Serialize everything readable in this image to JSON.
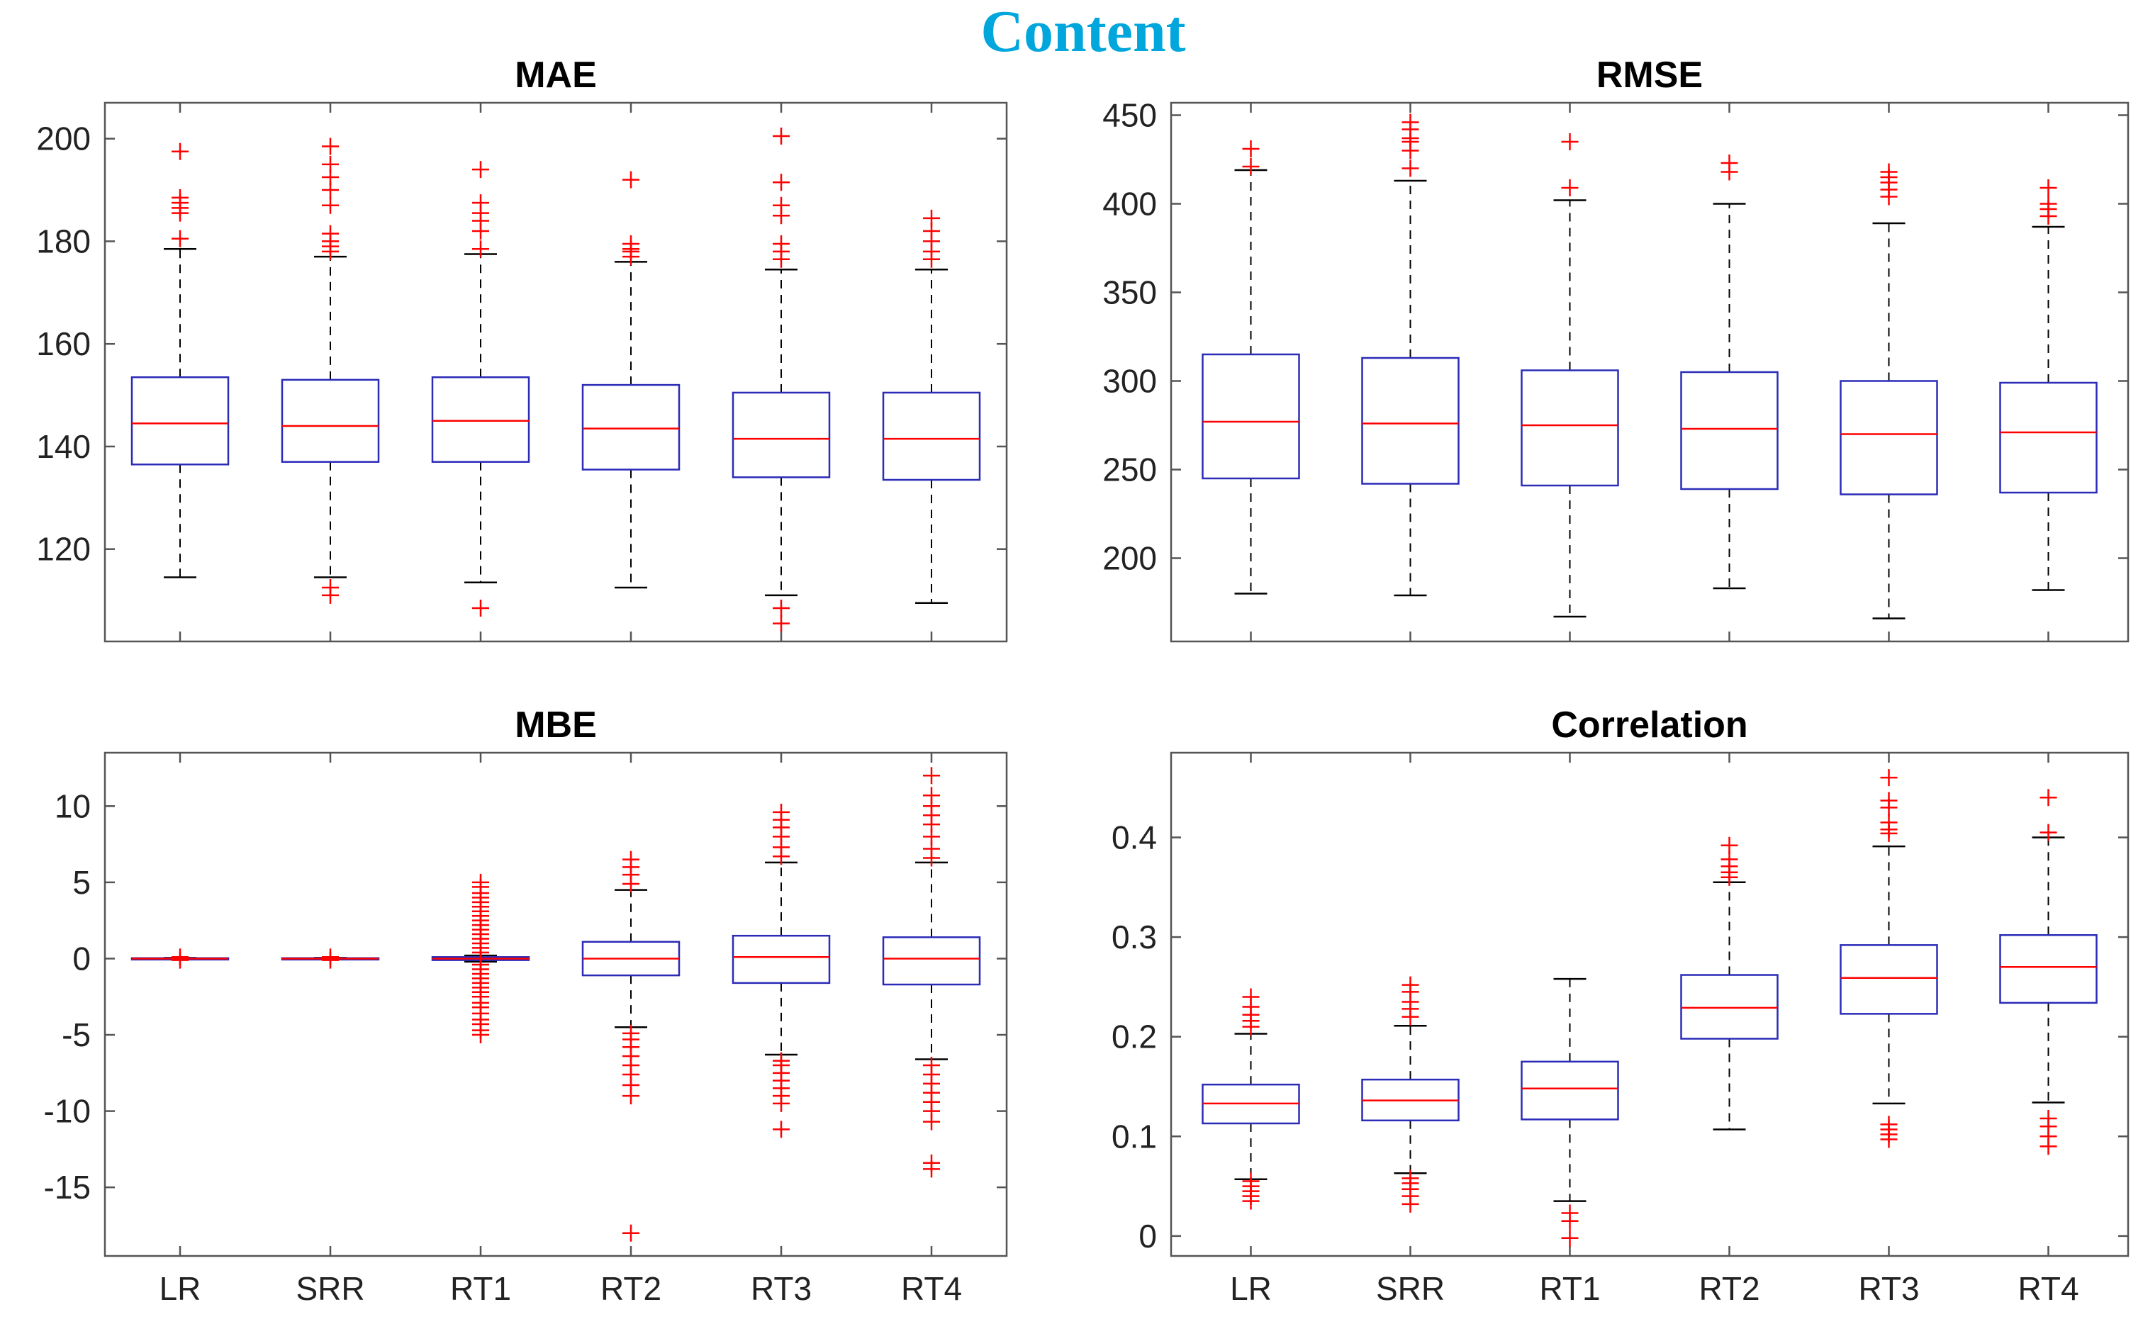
{
  "figure_title": "Content",
  "colors": {
    "title": "#00a6dc",
    "box": "#2b2bb8",
    "median": "#ff0000",
    "whisker": "#000000",
    "outlier": "#ff0000",
    "axes": "#555555"
  },
  "chart_data": [
    {
      "type": "box",
      "title": "MAE",
      "categories": [
        "LR",
        "SRR",
        "RT1",
        "RT2",
        "RT3",
        "RT4"
      ],
      "ylim": [
        102,
        207
      ],
      "yticks": [
        120,
        140,
        160,
        180,
        200
      ],
      "ytick_labels": [
        "120",
        "140",
        "160",
        "180",
        "200"
      ],
      "show_xtick_labels": false,
      "boxes": [
        {
          "category": "LR",
          "whisker_low": 114.5,
          "q1": 136.5,
          "median": 144.5,
          "q3": 153.5,
          "whisker_high": 178.5,
          "outliers": [
            180.5,
            185.5,
            186.5,
            187.5,
            188.5,
            197.5
          ]
        },
        {
          "category": "SRR",
          "whisker_low": 114.5,
          "q1": 137,
          "median": 144,
          "q3": 153,
          "whisker_high": 177,
          "outliers": [
            111,
            112.5,
            178,
            179,
            180,
            181.5,
            187,
            190,
            192.5,
            195,
            198.5
          ]
        },
        {
          "category": "RT1",
          "whisker_low": 113.5,
          "q1": 137,
          "median": 145,
          "q3": 153.5,
          "whisker_high": 177.5,
          "outliers": [
            108.5,
            178.5,
            182,
            184,
            185.5,
            187.5,
            194
          ]
        },
        {
          "category": "RT2",
          "whisker_low": 112.5,
          "q1": 135.5,
          "median": 143.5,
          "q3": 152,
          "whisker_high": 176,
          "outliers": [
            177,
            178,
            178.5,
            179.5,
            192
          ]
        },
        {
          "category": "RT3",
          "whisker_low": 111,
          "q1": 134,
          "median": 141.5,
          "q3": 150.5,
          "whisker_high": 174.5,
          "outliers": [
            105.5,
            108.5,
            176.5,
            178,
            179.5,
            185,
            187,
            191.5,
            200.5
          ]
        },
        {
          "category": "RT4",
          "whisker_low": 109.5,
          "q1": 133.5,
          "median": 141.5,
          "q3": 150.5,
          "whisker_high": 174.5,
          "outliers": [
            176.5,
            178,
            180,
            182,
            184.5
          ]
        }
      ]
    },
    {
      "type": "box",
      "title": "RMSE",
      "categories": [
        "LR",
        "SRR",
        "RT1",
        "RT2",
        "RT3",
        "RT4"
      ],
      "ylim": [
        153,
        457
      ],
      "yticks": [
        200,
        250,
        300,
        350,
        400,
        450
      ],
      "ytick_labels": [
        "200",
        "250",
        "300",
        "350",
        "400",
        "450"
      ],
      "show_xtick_labels": false,
      "boxes": [
        {
          "category": "LR",
          "whisker_low": 180,
          "q1": 245,
          "median": 277,
          "q3": 315,
          "whisker_high": 419,
          "outliers": [
            421,
            431
          ]
        },
        {
          "category": "SRR",
          "whisker_low": 179,
          "q1": 242,
          "median": 276,
          "q3": 313,
          "whisker_high": 413,
          "outliers": [
            420,
            430,
            435,
            437,
            442,
            446
          ]
        },
        {
          "category": "RT1",
          "whisker_low": 167,
          "q1": 241,
          "median": 275,
          "q3": 306,
          "whisker_high": 402,
          "outliers": [
            409,
            435
          ]
        },
        {
          "category": "RT2",
          "whisker_low": 183,
          "q1": 239,
          "median": 273,
          "q3": 305,
          "whisker_high": 400,
          "outliers": [
            418,
            423
          ]
        },
        {
          "category": "RT3",
          "whisker_low": 166,
          "q1": 236,
          "median": 270,
          "q3": 300,
          "whisker_high": 389,
          "outliers": [
            404,
            408,
            412,
            415,
            418
          ]
        },
        {
          "category": "RT4",
          "whisker_low": 182,
          "q1": 237,
          "median": 271,
          "q3": 299,
          "whisker_high": 387,
          "outliers": [
            393,
            397,
            400,
            409
          ]
        }
      ]
    },
    {
      "type": "box",
      "title": "MBE",
      "categories": [
        "LR",
        "SRR",
        "RT1",
        "RT2",
        "RT3",
        "RT4"
      ],
      "ylim": [
        -19.5,
        13.5
      ],
      "yticks": [
        -15,
        -10,
        -5,
        0,
        5,
        10
      ],
      "ytick_labels": [
        "-15",
        "-10",
        "-5",
        "0",
        "5",
        "10"
      ],
      "show_xtick_labels": true,
      "boxes": [
        {
          "category": "LR",
          "whisker_low": -0.05,
          "q1": -0.03,
          "median": 0,
          "q3": 0.03,
          "whisker_high": 0.05,
          "outliers": [
            -0.1,
            0.1
          ]
        },
        {
          "category": "SRR",
          "whisker_low": -0.05,
          "q1": -0.03,
          "median": 0,
          "q3": 0.03,
          "whisker_high": 0.05,
          "outliers": [
            -0.1,
            0.1
          ]
        },
        {
          "category": "RT1",
          "whisker_low": -0.2,
          "q1": -0.1,
          "median": 0,
          "q3": 0.1,
          "whisker_high": 0.2,
          "outliers": [
            -5,
            -4.7,
            -4.3,
            -4,
            -3.6,
            -3.2,
            -2.9,
            -2.5,
            -2.2,
            -1.9,
            -1.6,
            -1.3,
            -1,
            -0.7,
            -0.4,
            0.4,
            0.7,
            1,
            1.3,
            1.6,
            1.9,
            2.2,
            2.5,
            2.8,
            3.1,
            3.4,
            3.7,
            4,
            4.3,
            4.7,
            5
          ]
        },
        {
          "category": "RT2",
          "whisker_low": -4.5,
          "q1": -1.1,
          "median": 0,
          "q3": 1.1,
          "whisker_high": 4.5,
          "outliers": [
            -18,
            -9,
            -8.3,
            -7.6,
            -7,
            -6.4,
            -5.8,
            -5.3,
            -4.9,
            4.9,
            5.5,
            6,
            6.5
          ]
        },
        {
          "category": "RT3",
          "whisker_low": -6.3,
          "q1": -1.6,
          "median": 0.1,
          "q3": 1.5,
          "whisker_high": 6.3,
          "outliers": [
            -11.2,
            -9.5,
            -9,
            -8.5,
            -8,
            -7.5,
            -7,
            -6.7,
            6.7,
            7.3,
            8,
            8.6,
            9.1,
            9.6
          ]
        },
        {
          "category": "RT4",
          "whisker_low": -6.6,
          "q1": -1.7,
          "median": 0,
          "q3": 1.4,
          "whisker_high": 6.3,
          "outliers": [
            -13.8,
            -13.4,
            -10.7,
            -10,
            -9.4,
            -8.8,
            -8.2,
            -7.6,
            -7,
            6.6,
            7.2,
            8,
            8.8,
            9.4,
            10,
            10.7,
            12
          ]
        }
      ]
    },
    {
      "type": "box",
      "title": "Correlation",
      "categories": [
        "LR",
        "SRR",
        "RT1",
        "RT2",
        "RT3",
        "RT4"
      ],
      "ylim": [
        -0.02,
        0.485
      ],
      "yticks": [
        0,
        0.1,
        0.2,
        0.3,
        0.4
      ],
      "ytick_labels": [
        "0",
        "0.1",
        "0.2",
        "0.3",
        "0.4"
      ],
      "show_xtick_labels": true,
      "boxes": [
        {
          "category": "LR",
          "whisker_low": 0.057,
          "q1": 0.113,
          "median": 0.133,
          "q3": 0.152,
          "whisker_high": 0.203,
          "outliers": [
            0.035,
            0.04,
            0.045,
            0.05,
            0.055,
            0.21,
            0.216,
            0.222,
            0.23,
            0.24
          ]
        },
        {
          "category": "SRR",
          "whisker_low": 0.063,
          "q1": 0.116,
          "median": 0.136,
          "q3": 0.157,
          "whisker_high": 0.211,
          "outliers": [
            0.032,
            0.04,
            0.047,
            0.053,
            0.058,
            0.22,
            0.228,
            0.235,
            0.245,
            0.252
          ]
        },
        {
          "category": "RT1",
          "whisker_low": 0.035,
          "q1": 0.117,
          "median": 0.148,
          "q3": 0.175,
          "whisker_high": 0.258,
          "outliers": [
            -0.002,
            0.015,
            0.023
          ]
        },
        {
          "category": "RT2",
          "whisker_low": 0.107,
          "q1": 0.198,
          "median": 0.229,
          "q3": 0.262,
          "whisker_high": 0.355,
          "outliers": [
            0.36,
            0.365,
            0.371,
            0.378,
            0.392
          ]
        },
        {
          "category": "RT3",
          "whisker_low": 0.133,
          "q1": 0.223,
          "median": 0.259,
          "q3": 0.292,
          "whisker_high": 0.391,
          "outliers": [
            0.097,
            0.102,
            0.107,
            0.112,
            0.404,
            0.408,
            0.415,
            0.43,
            0.437,
            0.46
          ]
        },
        {
          "category": "RT4",
          "whisker_low": 0.134,
          "q1": 0.234,
          "median": 0.27,
          "q3": 0.302,
          "whisker_high": 0.4,
          "outliers": [
            0.09,
            0.1,
            0.11,
            0.118,
            0.405,
            0.44
          ]
        }
      ]
    }
  ]
}
